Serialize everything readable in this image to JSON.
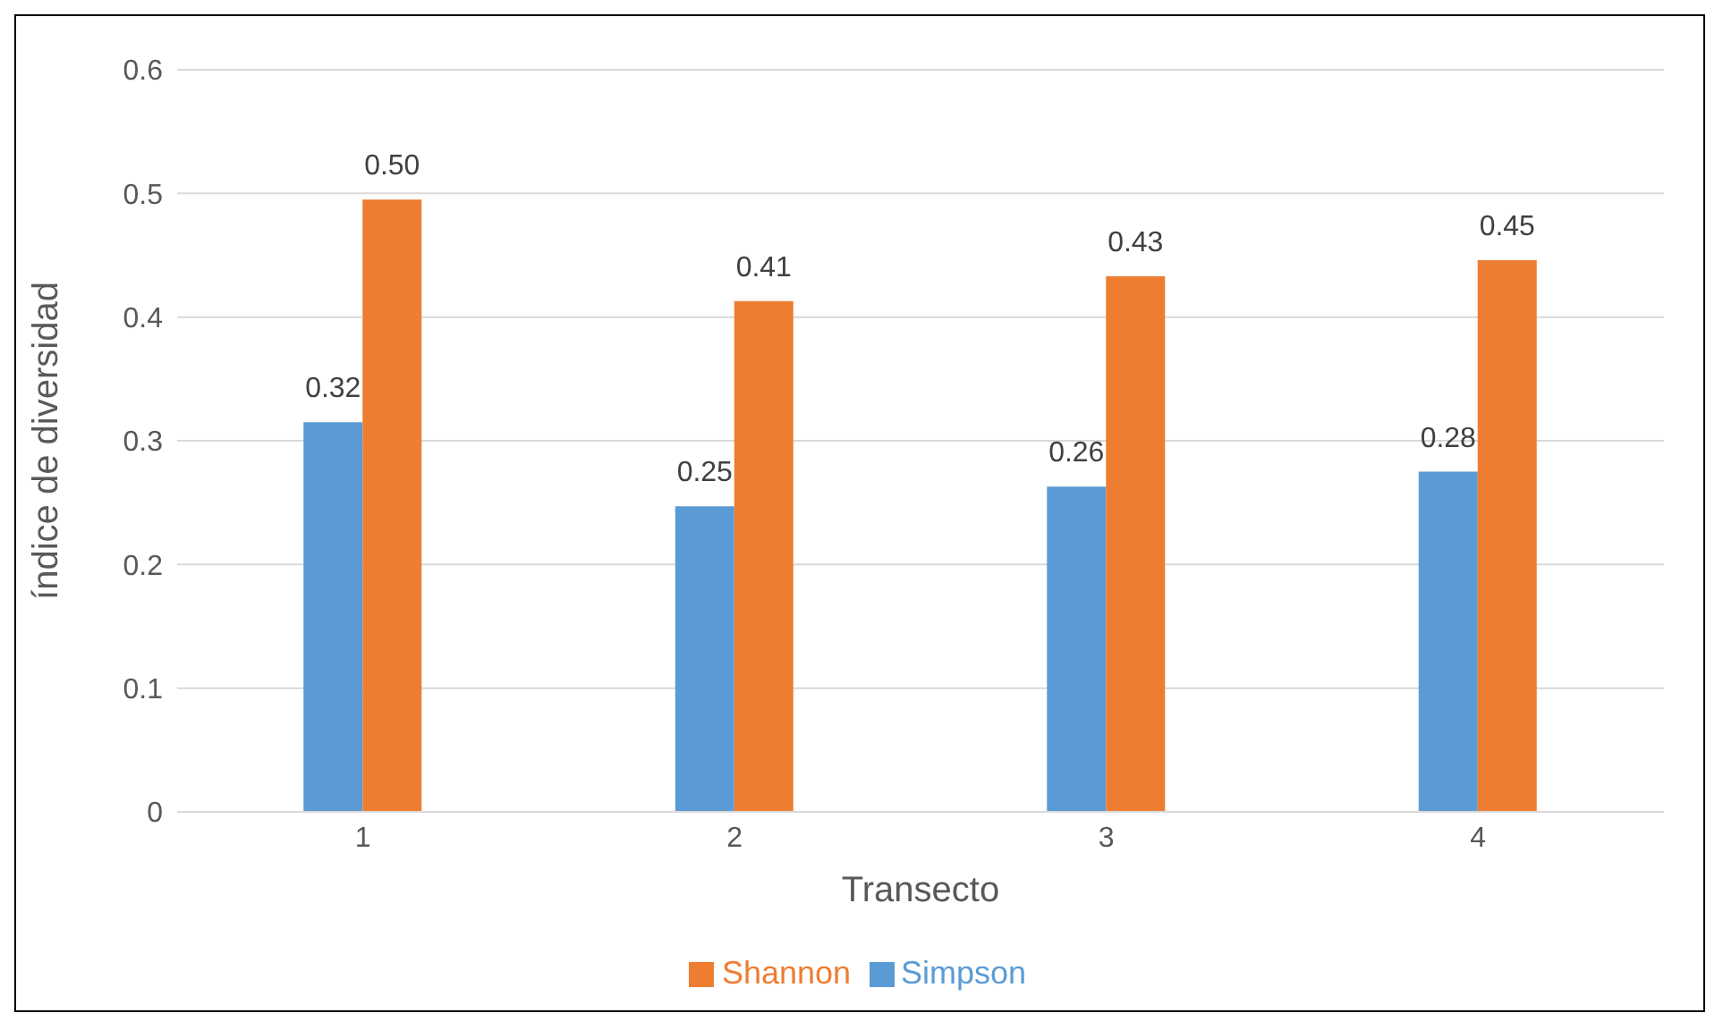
{
  "chart_data": {
    "type": "bar",
    "xlabel": "Transecto",
    "ylabel": "índice de diversidad",
    "categories": [
      "1",
      "2",
      "3",
      "4"
    ],
    "series": [
      {
        "name": "Simpson",
        "color": "#5b9bd5",
        "values": [
          0.315,
          0.247,
          0.263,
          0.275
        ],
        "value_labels": [
          "0.32",
          "0.25",
          "0.26",
          "0.28"
        ]
      },
      {
        "name": "Shannon",
        "color": "#ed7d31",
        "values": [
          0.495,
          0.413,
          0.433,
          0.446
        ],
        "value_labels": [
          "0.50",
          "0.41",
          "0.43",
          "0.45"
        ]
      }
    ],
    "ylim": [
      0,
      0.6
    ],
    "yticks": [
      0,
      0.1,
      0.2,
      0.3,
      0.4,
      0.5,
      0.6
    ],
    "grid": "y",
    "legend": "bottom"
  }
}
